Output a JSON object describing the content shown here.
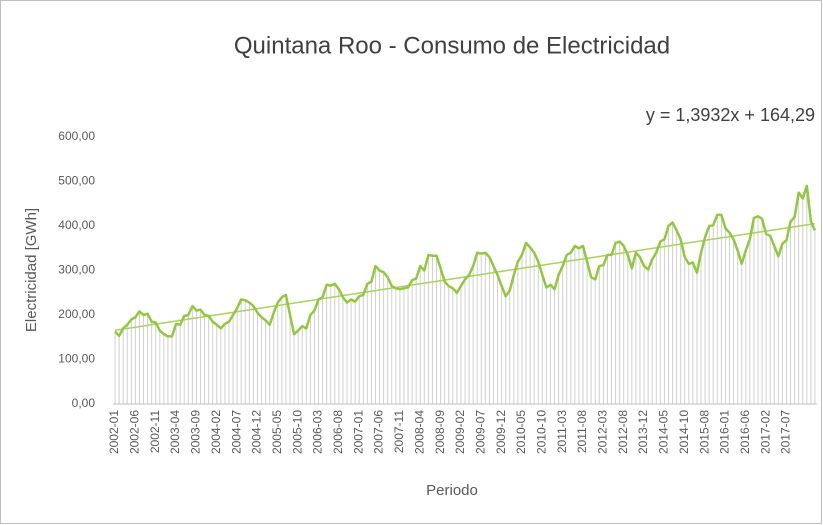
{
  "chart_data": {
    "type": "line",
    "title": "Quintana Roo - Consumo de Electricidad",
    "x_label": "Periodo",
    "y_label": "Electricidad [GWh]",
    "trendline": {
      "slope": 1.3932,
      "intercept": 164.29,
      "label": "y = 1,3932x + 164,29",
      "color": "#a9d15c"
    },
    "categories": [
      "2002-01",
      null,
      null,
      null,
      null,
      "2002-06",
      null,
      null,
      null,
      null,
      "2002-11",
      null,
      null,
      null,
      null,
      "2003-04",
      null,
      null,
      null,
      null,
      "2003-09",
      null,
      null,
      null,
      null,
      "2004-02",
      null,
      null,
      null,
      null,
      "2004-07",
      null,
      null,
      null,
      null,
      "2004-12",
      null,
      null,
      null,
      null,
      "2005-05",
      null,
      null,
      null,
      null,
      "2005-10",
      null,
      null,
      null,
      null,
      "2006-03",
      null,
      null,
      null,
      null,
      "2006-08",
      null,
      null,
      null,
      null,
      "2007-01",
      null,
      null,
      null,
      null,
      "2007-06",
      null,
      null,
      null,
      null,
      "2007-11",
      null,
      null,
      null,
      null,
      "2008-04",
      null,
      null,
      null,
      null,
      "2008-09",
      null,
      null,
      null,
      null,
      "2009-02",
      null,
      null,
      null,
      null,
      "2009-07",
      null,
      null,
      null,
      null,
      "2009-12",
      null,
      null,
      null,
      null,
      "2010-05",
      null,
      null,
      null,
      null,
      "2010-10",
      null,
      null,
      null,
      null,
      "2011-03",
      null,
      null,
      null,
      null,
      "2011-08",
      null,
      null,
      null,
      null,
      "2012-03",
      null,
      null,
      null,
      null,
      "2012-08",
      null,
      null,
      null,
      null,
      "2013-12",
      null,
      null,
      null,
      null,
      "2014-05",
      null,
      null,
      null,
      null,
      "2014-10",
      null,
      null,
      null,
      null,
      "2015-08",
      null,
      null,
      null,
      null,
      "2016-01",
      null,
      null,
      null,
      null,
      "2016-06",
      null,
      null,
      null,
      null,
      "2017-02",
      null,
      null,
      null,
      null,
      "2017-07",
      null,
      null,
      null,
      null,
      null,
      null,
      null
    ],
    "values": [
      163,
      153,
      170,
      178,
      190,
      195,
      208,
      200,
      203,
      185,
      183,
      165,
      157,
      152,
      152,
      180,
      178,
      198,
      200,
      220,
      210,
      212,
      200,
      198,
      185,
      178,
      170,
      180,
      185,
      200,
      215,
      235,
      233,
      228,
      220,
      205,
      195,
      188,
      178,
      205,
      228,
      240,
      245,
      200,
      157,
      165,
      175,
      170,
      200,
      210,
      235,
      240,
      268,
      266,
      270,
      258,
      240,
      228,
      235,
      230,
      242,
      245,
      270,
      275,
      310,
      300,
      296,
      285,
      265,
      260,
      258,
      260,
      262,
      278,
      282,
      310,
      300,
      335,
      333,
      333,
      305,
      275,
      265,
      260,
      250,
      265,
      280,
      290,
      310,
      340,
      338,
      340,
      330,
      310,
      290,
      265,
      242,
      255,
      290,
      320,
      335,
      362,
      352,
      340,
      320,
      290,
      262,
      268,
      258,
      290,
      310,
      335,
      340,
      355,
      350,
      355,
      320,
      285,
      280,
      310,
      312,
      335,
      335,
      362,
      365,
      355,
      335,
      305,
      340,
      330,
      310,
      302,
      325,
      340,
      365,
      370,
      400,
      408,
      390,
      370,
      330,
      315,
      318,
      295,
      340,
      375,
      400,
      402,
      425,
      425,
      395,
      385,
      370,
      345,
      315,
      345,
      370,
      418,
      422,
      416,
      382,
      378,
      355,
      332,
      360,
      368,
      410,
      420,
      475,
      462,
      490,
      410,
      390
    ],
    "color": "#92c83e",
    "drop_color": "#d0d0d0",
    "ylim": [
      0,
      600
    ],
    "yticks": [
      {
        "value": 0,
        "label": "0,00"
      },
      {
        "value": 100,
        "label": "100,00"
      },
      {
        "value": 200,
        "label": "200,00"
      },
      {
        "value": 300,
        "label": "300,00"
      },
      {
        "value": 400,
        "label": "400,00"
      },
      {
        "value": 500,
        "label": "500,00"
      },
      {
        "value": 600,
        "label": "600,00"
      }
    ]
  }
}
